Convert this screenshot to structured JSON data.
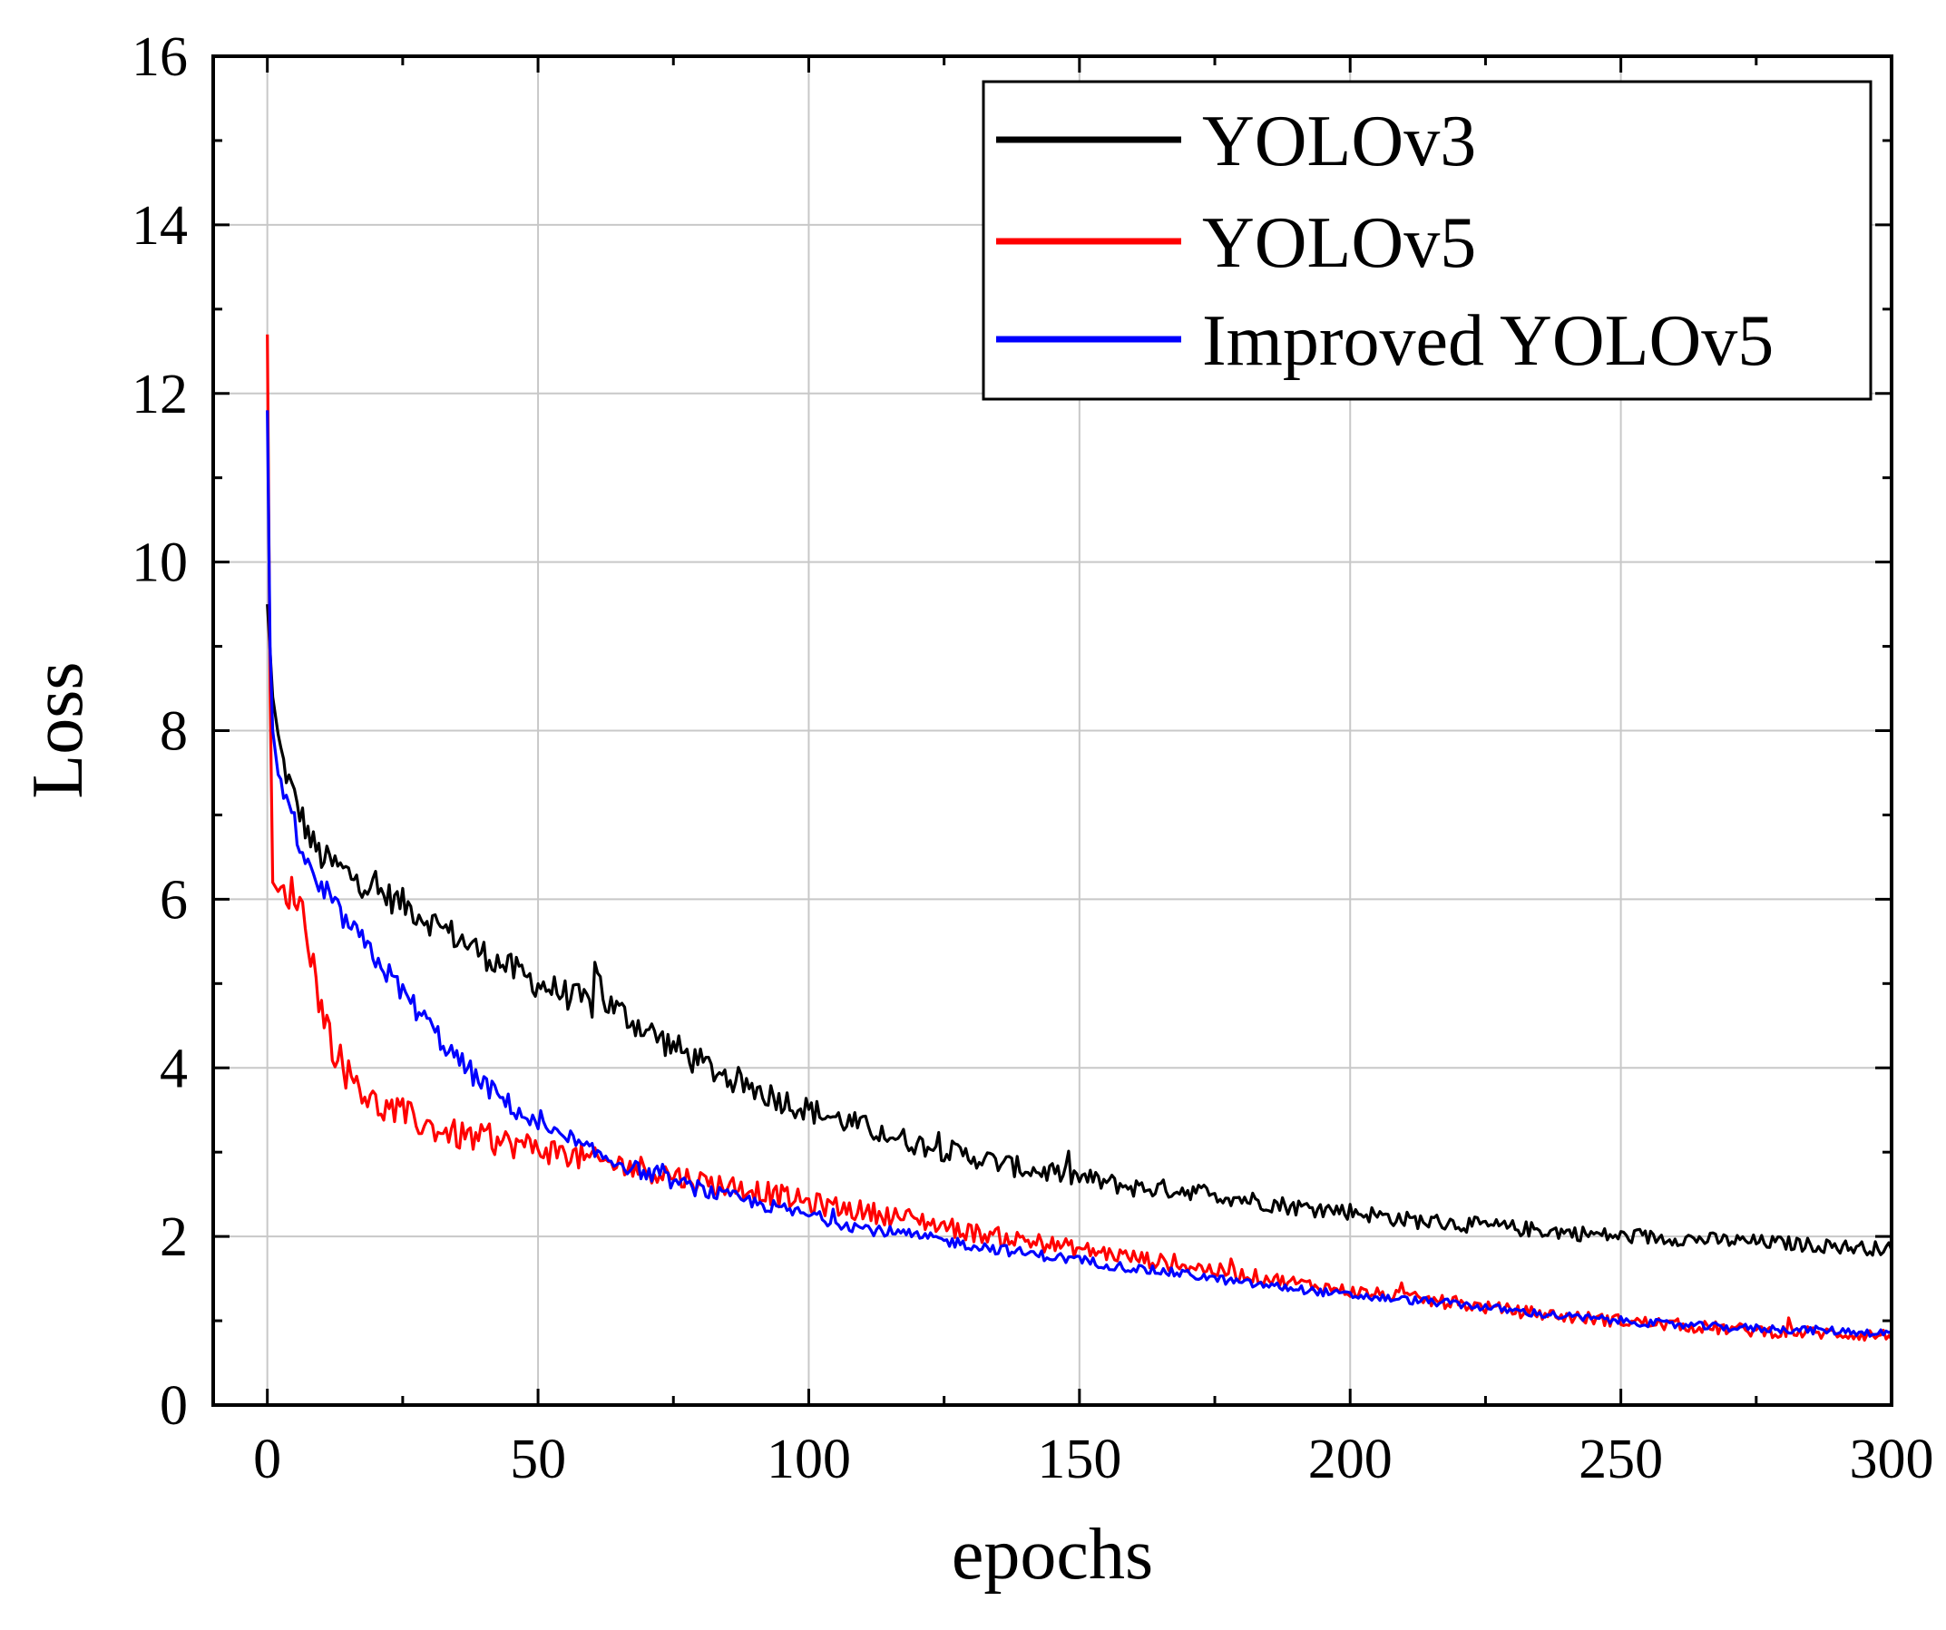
{
  "chart_data": {
    "type": "line",
    "title": "",
    "xlabel": "epochs",
    "ylabel": "Loss",
    "xlim": [
      -10,
      300
    ],
    "ylim": [
      0,
      16
    ],
    "xticks": [
      0,
      50,
      100,
      150,
      200,
      250,
      300
    ],
    "yticks": [
      0,
      2,
      4,
      6,
      8,
      10,
      12,
      14,
      16
    ],
    "grid": true,
    "legend_position": "top-right",
    "series": [
      {
        "name": "YOLOv3",
        "color": "#000000",
        "noise": 0.18,
        "x": [
          0,
          1,
          2,
          3,
          5,
          8,
          10,
          15,
          20,
          25,
          30,
          35,
          40,
          50,
          60,
          61,
          62,
          70,
          80,
          90,
          100,
          110,
          120,
          130,
          140,
          150,
          160,
          170,
          180,
          190,
          200,
          210,
          220,
          230,
          240,
          250,
          260,
          270,
          280,
          290,
          300
        ],
        "y": [
          9.5,
          8.4,
          7.9,
          7.6,
          7.2,
          6.7,
          6.5,
          6.3,
          6.1,
          5.95,
          5.75,
          5.55,
          5.35,
          5.0,
          4.75,
          5.2,
          4.8,
          4.45,
          4.05,
          3.75,
          3.5,
          3.3,
          3.1,
          2.95,
          2.8,
          2.7,
          2.58,
          2.55,
          2.45,
          2.35,
          2.3,
          2.2,
          2.15,
          2.1,
          2.05,
          2.0,
          1.98,
          1.95,
          1.92,
          1.88,
          1.85
        ]
      },
      {
        "name": "YOLOv5",
        "color": "#ff0000",
        "noise": 0.22,
        "x": [
          0,
          0.5,
          1,
          2,
          4,
          6,
          8,
          10,
          12,
          14,
          16,
          18,
          20,
          25,
          30,
          35,
          40,
          50,
          60,
          70,
          80,
          90,
          100,
          110,
          120,
          130,
          140,
          150,
          160,
          170,
          180,
          190,
          200,
          210,
          220,
          230,
          240,
          250,
          260,
          270,
          280,
          290,
          300
        ],
        "y": [
          12.7,
          8.5,
          6.2,
          6.0,
          6.1,
          6.0,
          5.4,
          4.7,
          4.3,
          4.0,
          3.85,
          3.7,
          3.55,
          3.45,
          3.3,
          3.2,
          3.15,
          3.05,
          2.9,
          2.8,
          2.65,
          2.55,
          2.4,
          2.3,
          2.2,
          2.05,
          1.95,
          1.85,
          1.75,
          1.65,
          1.55,
          1.45,
          1.35,
          1.28,
          1.2,
          1.12,
          1.05,
          1.0,
          0.95,
          0.9,
          0.87,
          0.85,
          0.82
        ]
      },
      {
        "name": "Improved YOLOv5",
        "color": "#0000ff",
        "noise": 0.14,
        "x": [
          0,
          0.5,
          1,
          2,
          3,
          5,
          8,
          10,
          15,
          20,
          25,
          30,
          35,
          40,
          45,
          50,
          60,
          70,
          80,
          90,
          100,
          110,
          120,
          130,
          140,
          150,
          160,
          170,
          180,
          190,
          200,
          210,
          220,
          230,
          240,
          250,
          260,
          270,
          280,
          290,
          300
        ],
        "y": [
          11.8,
          9.0,
          8.0,
          7.6,
          7.2,
          6.8,
          6.3,
          6.1,
          5.7,
          5.3,
          4.9,
          4.5,
          4.1,
          3.8,
          3.55,
          3.3,
          3.0,
          2.75,
          2.55,
          2.4,
          2.25,
          2.1,
          2.0,
          1.9,
          1.8,
          1.72,
          1.62,
          1.55,
          1.45,
          1.38,
          1.3,
          1.25,
          1.2,
          1.12,
          1.05,
          1.0,
          0.95,
          0.92,
          0.9,
          0.88,
          0.85
        ]
      }
    ]
  }
}
